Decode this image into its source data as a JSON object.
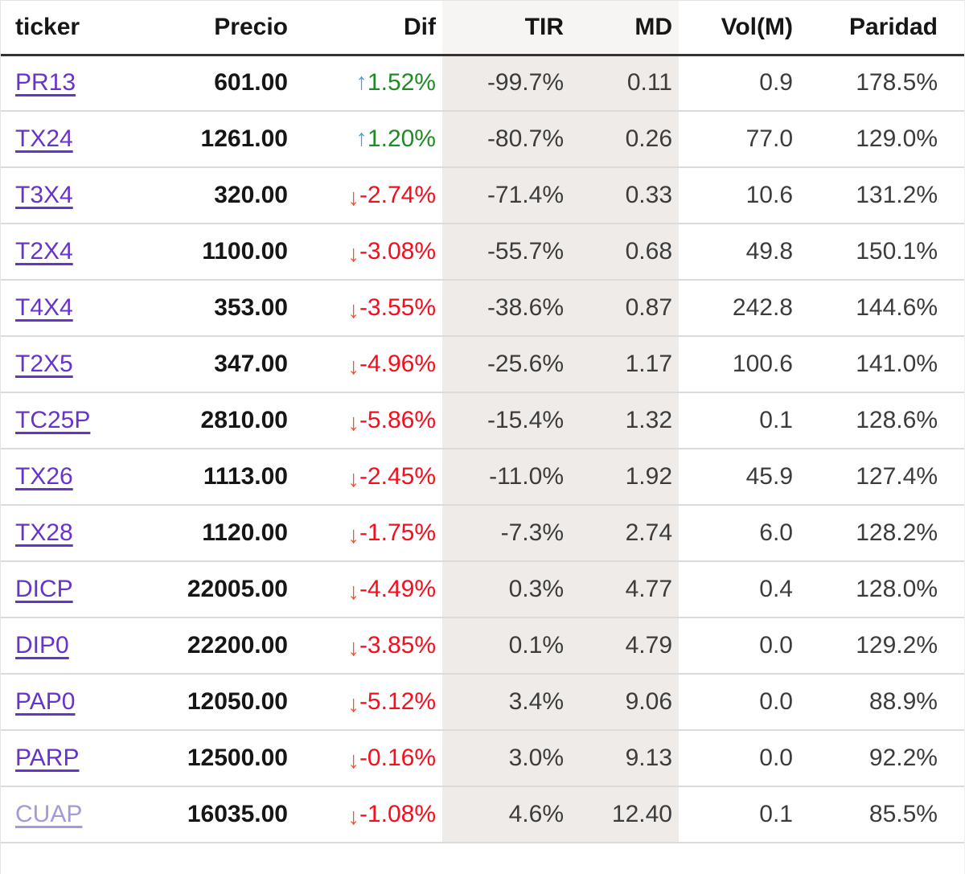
{
  "table": {
    "columns": [
      {
        "key": "ticker",
        "label": "ticker"
      },
      {
        "key": "precio",
        "label": "Precio"
      },
      {
        "key": "dif",
        "label": "Dif"
      },
      {
        "key": "tir",
        "label": "TIR"
      },
      {
        "key": "md",
        "label": "MD"
      },
      {
        "key": "vol",
        "label": "Vol(M)"
      },
      {
        "key": "paridad",
        "label": "Paridad"
      }
    ],
    "icons": {
      "up": "↑",
      "down": "↓"
    },
    "colors": {
      "link": "#6633cc",
      "link_visited": "#a29ade",
      "up_text": "#1f8b24",
      "up_arrow": "#4a9fd8",
      "down_text": "#f80d1c",
      "down_arrow": "#f4502e",
      "band_header": "#f7f5f3",
      "band_body": "#efebe8",
      "text": "#3c3c3c"
    },
    "rows": [
      {
        "ticker": "PR13",
        "precio": "601.00",
        "dif": "1.52%",
        "direction": "up",
        "tir": "-99.7%",
        "md": "0.11",
        "vol": "0.9",
        "paridad": "178.5%",
        "visited": false
      },
      {
        "ticker": "TX24",
        "precio": "1261.00",
        "dif": "1.20%",
        "direction": "up",
        "tir": "-80.7%",
        "md": "0.26",
        "vol": "77.0",
        "paridad": "129.0%",
        "visited": false
      },
      {
        "ticker": "T3X4",
        "precio": "320.00",
        "dif": "-2.74%",
        "direction": "down",
        "tir": "-71.4%",
        "md": "0.33",
        "vol": "10.6",
        "paridad": "131.2%",
        "visited": false
      },
      {
        "ticker": "T2X4",
        "precio": "1100.00",
        "dif": "-3.08%",
        "direction": "down",
        "tir": "-55.7%",
        "md": "0.68",
        "vol": "49.8",
        "paridad": "150.1%",
        "visited": false
      },
      {
        "ticker": "T4X4",
        "precio": "353.00",
        "dif": "-3.55%",
        "direction": "down",
        "tir": "-38.6%",
        "md": "0.87",
        "vol": "242.8",
        "paridad": "144.6%",
        "visited": false
      },
      {
        "ticker": "T2X5",
        "precio": "347.00",
        "dif": "-4.96%",
        "direction": "down",
        "tir": "-25.6%",
        "md": "1.17",
        "vol": "100.6",
        "paridad": "141.0%",
        "visited": false
      },
      {
        "ticker": "TC25P",
        "precio": "2810.00",
        "dif": "-5.86%",
        "direction": "down",
        "tir": "-15.4%",
        "md": "1.32",
        "vol": "0.1",
        "paridad": "128.6%",
        "visited": false
      },
      {
        "ticker": "TX26",
        "precio": "1113.00",
        "dif": "-2.45%",
        "direction": "down",
        "tir": "-11.0%",
        "md": "1.92",
        "vol": "45.9",
        "paridad": "127.4%",
        "visited": false
      },
      {
        "ticker": "TX28",
        "precio": "1120.00",
        "dif": "-1.75%",
        "direction": "down",
        "tir": "-7.3%",
        "md": "2.74",
        "vol": "6.0",
        "paridad": "128.2%",
        "visited": false
      },
      {
        "ticker": "DICP",
        "precio": "22005.00",
        "dif": "-4.49%",
        "direction": "down",
        "tir": "0.3%",
        "md": "4.77",
        "vol": "0.4",
        "paridad": "128.0%",
        "visited": false
      },
      {
        "ticker": "DIP0",
        "precio": "22200.00",
        "dif": "-3.85%",
        "direction": "down",
        "tir": "0.1%",
        "md": "4.79",
        "vol": "0.0",
        "paridad": "129.2%",
        "visited": false
      },
      {
        "ticker": "PAP0",
        "precio": "12050.00",
        "dif": "-5.12%",
        "direction": "down",
        "tir": "3.4%",
        "md": "9.06",
        "vol": "0.0",
        "paridad": "88.9%",
        "visited": false
      },
      {
        "ticker": "PARP",
        "precio": "12500.00",
        "dif": "-0.16%",
        "direction": "down",
        "tir": "3.0%",
        "md": "9.13",
        "vol": "0.0",
        "paridad": "92.2%",
        "visited": false
      },
      {
        "ticker": "CUAP",
        "precio": "16035.00",
        "dif": "-1.08%",
        "direction": "down",
        "tir": "4.6%",
        "md": "12.40",
        "vol": "0.1",
        "paridad": "85.5%",
        "visited": true
      }
    ]
  }
}
